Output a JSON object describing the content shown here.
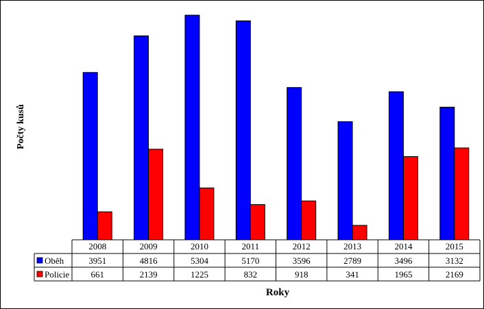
{
  "chart_data": {
    "type": "bar",
    "title": "",
    "xlabel": "Roky",
    "ylabel": "Počty kusů",
    "ylim": [
      0,
      5500
    ],
    "grid": false,
    "legend": "data-table-left",
    "categories": [
      "2008",
      "2009",
      "2010",
      "2011",
      "2012",
      "2013",
      "2014",
      "2015"
    ],
    "series": [
      {
        "name": "Oběh",
        "color": "#0000ff",
        "values": [
          3951,
          4816,
          5304,
          5170,
          3596,
          2789,
          3496,
          3132
        ]
      },
      {
        "name": "Policie",
        "color": "#ff0000",
        "values": [
          661,
          2139,
          1225,
          832,
          918,
          341,
          1965,
          2169
        ]
      }
    ],
    "data_table": true
  }
}
